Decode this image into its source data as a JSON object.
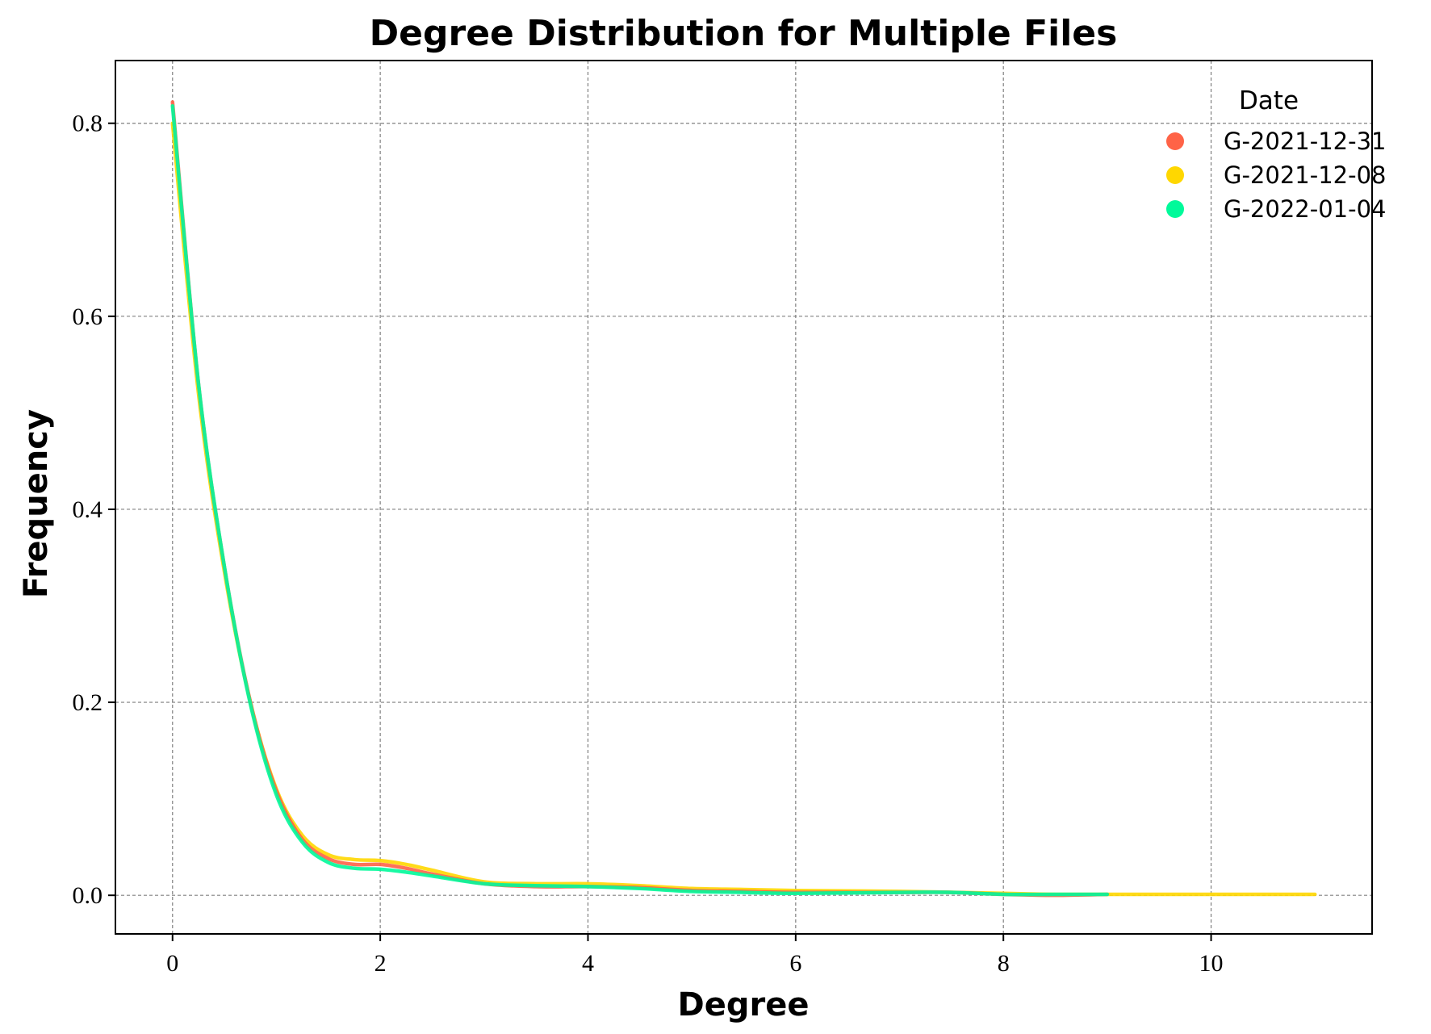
{
  "chart_data": {
    "type": "line",
    "title": "Degree Distribution for Multiple Files",
    "xlabel": "Degree",
    "ylabel": "Frequency",
    "xlim": [
      -0.55,
      11.55
    ],
    "ylim": [
      -0.04,
      0.865
    ],
    "xticks": [
      0,
      2,
      4,
      6,
      8,
      10
    ],
    "yticks": [
      0.0,
      0.2,
      0.4,
      0.6,
      0.8
    ],
    "xtick_labels": [
      "0",
      "2",
      "4",
      "6",
      "8",
      "10"
    ],
    "ytick_labels": [
      "0.0",
      "0.2",
      "0.4",
      "0.6",
      "0.8"
    ],
    "grid": true,
    "legend": {
      "title": "Date",
      "placement": "top-right"
    },
    "series": [
      {
        "name": "G-2021-12-31",
        "color": "#FF6347",
        "x": [
          0,
          0.25,
          0.5,
          0.75,
          1.0,
          1.25,
          1.5,
          1.75,
          2.0,
          2.25,
          2.5,
          3.0,
          3.5,
          4.0,
          4.5,
          5.0,
          5.5,
          6.0,
          7.0,
          7.5,
          8.0,
          8.5,
          9.0
        ],
        "y": [
          0.822,
          0.53,
          0.34,
          0.2,
          0.108,
          0.058,
          0.038,
          0.032,
          0.032,
          0.028,
          0.022,
          0.012,
          0.009,
          0.009,
          0.008,
          0.005,
          0.004,
          0.003,
          0.003,
          0.003,
          0.001,
          0.0,
          0.001
        ]
      },
      {
        "name": "G-2021-12-08",
        "color": "#FFD700",
        "x": [
          0,
          0.25,
          0.5,
          0.75,
          1.0,
          1.25,
          1.5,
          1.75,
          2.0,
          2.25,
          2.5,
          3.0,
          3.5,
          4.0,
          4.5,
          5.0,
          5.5,
          6.0,
          7.0,
          8.0,
          8.5,
          9.0,
          9.5,
          10.0,
          10.5,
          11.0
        ],
        "y": [
          0.8,
          0.52,
          0.335,
          0.2,
          0.11,
          0.062,
          0.042,
          0.037,
          0.036,
          0.032,
          0.026,
          0.014,
          0.012,
          0.012,
          0.01,
          0.007,
          0.006,
          0.005,
          0.004,
          0.002,
          0.001,
          0.001,
          0.001,
          0.001,
          0.001,
          0.001
        ]
      },
      {
        "name": "G-2022-01-04",
        "color": "#00FA9A",
        "x": [
          0,
          0.25,
          0.5,
          0.75,
          1.0,
          1.25,
          1.5,
          1.75,
          2.0,
          2.25,
          2.5,
          3.0,
          3.5,
          4.0,
          4.5,
          5.0,
          5.5,
          6.0,
          7.0,
          7.5,
          8.0,
          8.5,
          9.0
        ],
        "y": [
          0.818,
          0.53,
          0.34,
          0.198,
          0.104,
          0.055,
          0.034,
          0.028,
          0.027,
          0.024,
          0.02,
          0.012,
          0.01,
          0.009,
          0.007,
          0.004,
          0.003,
          0.002,
          0.003,
          0.003,
          0.001,
          0.001,
          0.001
        ]
      }
    ]
  }
}
